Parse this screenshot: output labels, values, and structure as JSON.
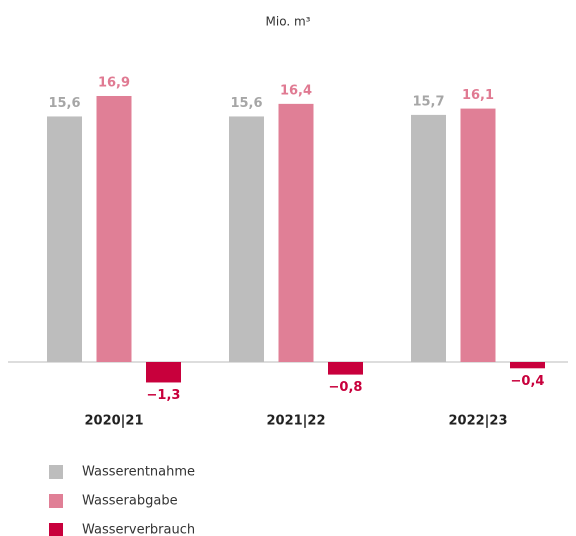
{
  "chart_data": {
    "type": "bar",
    "subtitle": "Mio. m³",
    "categories": [
      "2020|21",
      "2021|22",
      "2022|23"
    ],
    "series": [
      {
        "name": "Wasserentnahme",
        "color": "#bdbdbd",
        "label_color": "#a6a6a6",
        "values": [
          15.6,
          15.6,
          15.7
        ],
        "value_labels": [
          "15,6",
          "15,6",
          "15,7"
        ]
      },
      {
        "name": "Wasserabgabe",
        "color": "#e07f96",
        "label_color": "#e07a92",
        "values": [
          16.9,
          16.4,
          16.1
        ],
        "value_labels": [
          "16,9",
          "16,4",
          "16,1"
        ]
      },
      {
        "name": "Wasserverbrauch",
        "color": "#c8003c",
        "label_color": "#c8003c",
        "values": [
          -1.3,
          -0.8,
          -0.4
        ],
        "value_labels": [
          "−1,3",
          "−0,8",
          "−0,4"
        ]
      }
    ]
  }
}
